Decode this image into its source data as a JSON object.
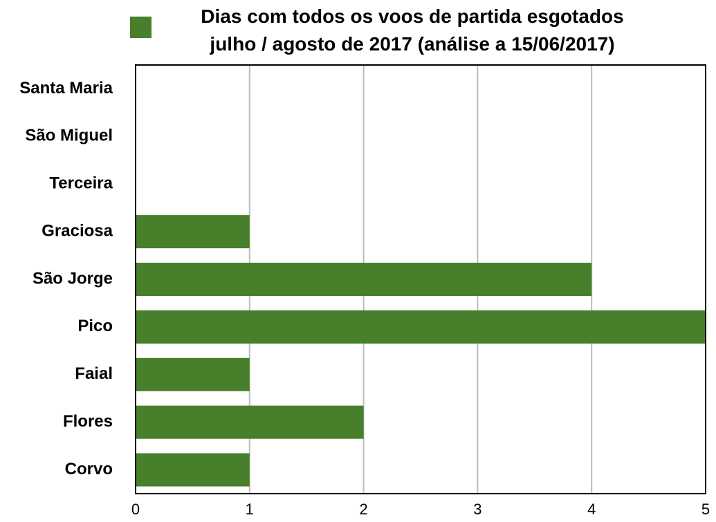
{
  "chart_data": {
    "type": "barh",
    "categories": [
      "Santa Maria",
      "São Miguel",
      "Terceira",
      "Graciosa",
      "São Jorge",
      "Pico",
      "Faial",
      "Flores",
      "Corvo"
    ],
    "series": [
      {
        "name": "Dias com todos os voos de partida esgotados\njulho / agosto de 2017 (análise a 15/06/2017)",
        "color": "#477f2a",
        "values": [
          0,
          0,
          0,
          1,
          4,
          5,
          1,
          2,
          1
        ]
      }
    ],
    "xlim": [
      0,
      5
    ],
    "xticks": [
      0,
      1,
      2,
      3,
      4,
      5
    ],
    "grid": true,
    "legend": "top"
  }
}
